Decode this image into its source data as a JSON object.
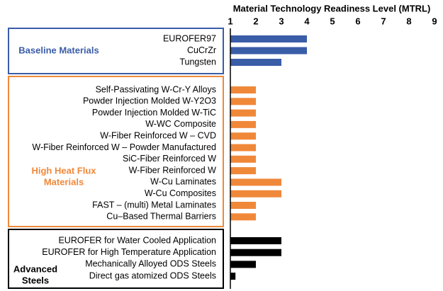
{
  "chart_data": {
    "type": "bar",
    "xlabel": "Material Technology Readiness Level (MTRL)",
    "xlim": [
      1,
      9
    ],
    "xticks": [
      1,
      2,
      3,
      4,
      5,
      6,
      7,
      8,
      9
    ],
    "series": [
      {
        "name": [
          "Baseline Materials"
        ],
        "color": "#3a5da8",
        "categories": [
          "EUROFER97",
          "CuCrZr",
          "Tungsten"
        ],
        "values": [
          4,
          4,
          3
        ]
      },
      {
        "name": [
          "High Heat Flux",
          "Materials"
        ],
        "color": "#f0883a",
        "categories": [
          "Self-Passivating W-Cr-Y Alloys",
          "Powder Injection Molded W-Y2O3",
          "Powder Injection Molded W-TiC",
          "W-WC Composite",
          "W-Fiber Reinforced W – CVD",
          "W-Fiber Reinforced W – Powder Manufactured",
          "SiC-Fiber Reinforced W",
          "W-Fiber Reinforced W",
          "W-Cu Laminates",
          "W-Cu Composites",
          "FAST – (multi) Metal Laminates",
          "Cu–Based Thermal Barriers"
        ],
        "values": [
          2,
          2,
          2,
          2,
          2,
          2,
          2,
          2,
          3,
          3,
          2,
          2
        ]
      },
      {
        "name": [
          "Advanced",
          "Steels"
        ],
        "color": "#000000",
        "categories": [
          "EUROFER for Water Cooled Application",
          "EUROFER for High Temperature Application",
          "Mechanically Alloyed ODS Steels",
          "Direct gas atomized ODS Steels"
        ],
        "values": [
          3,
          3,
          2,
          1.2
        ]
      }
    ]
  }
}
